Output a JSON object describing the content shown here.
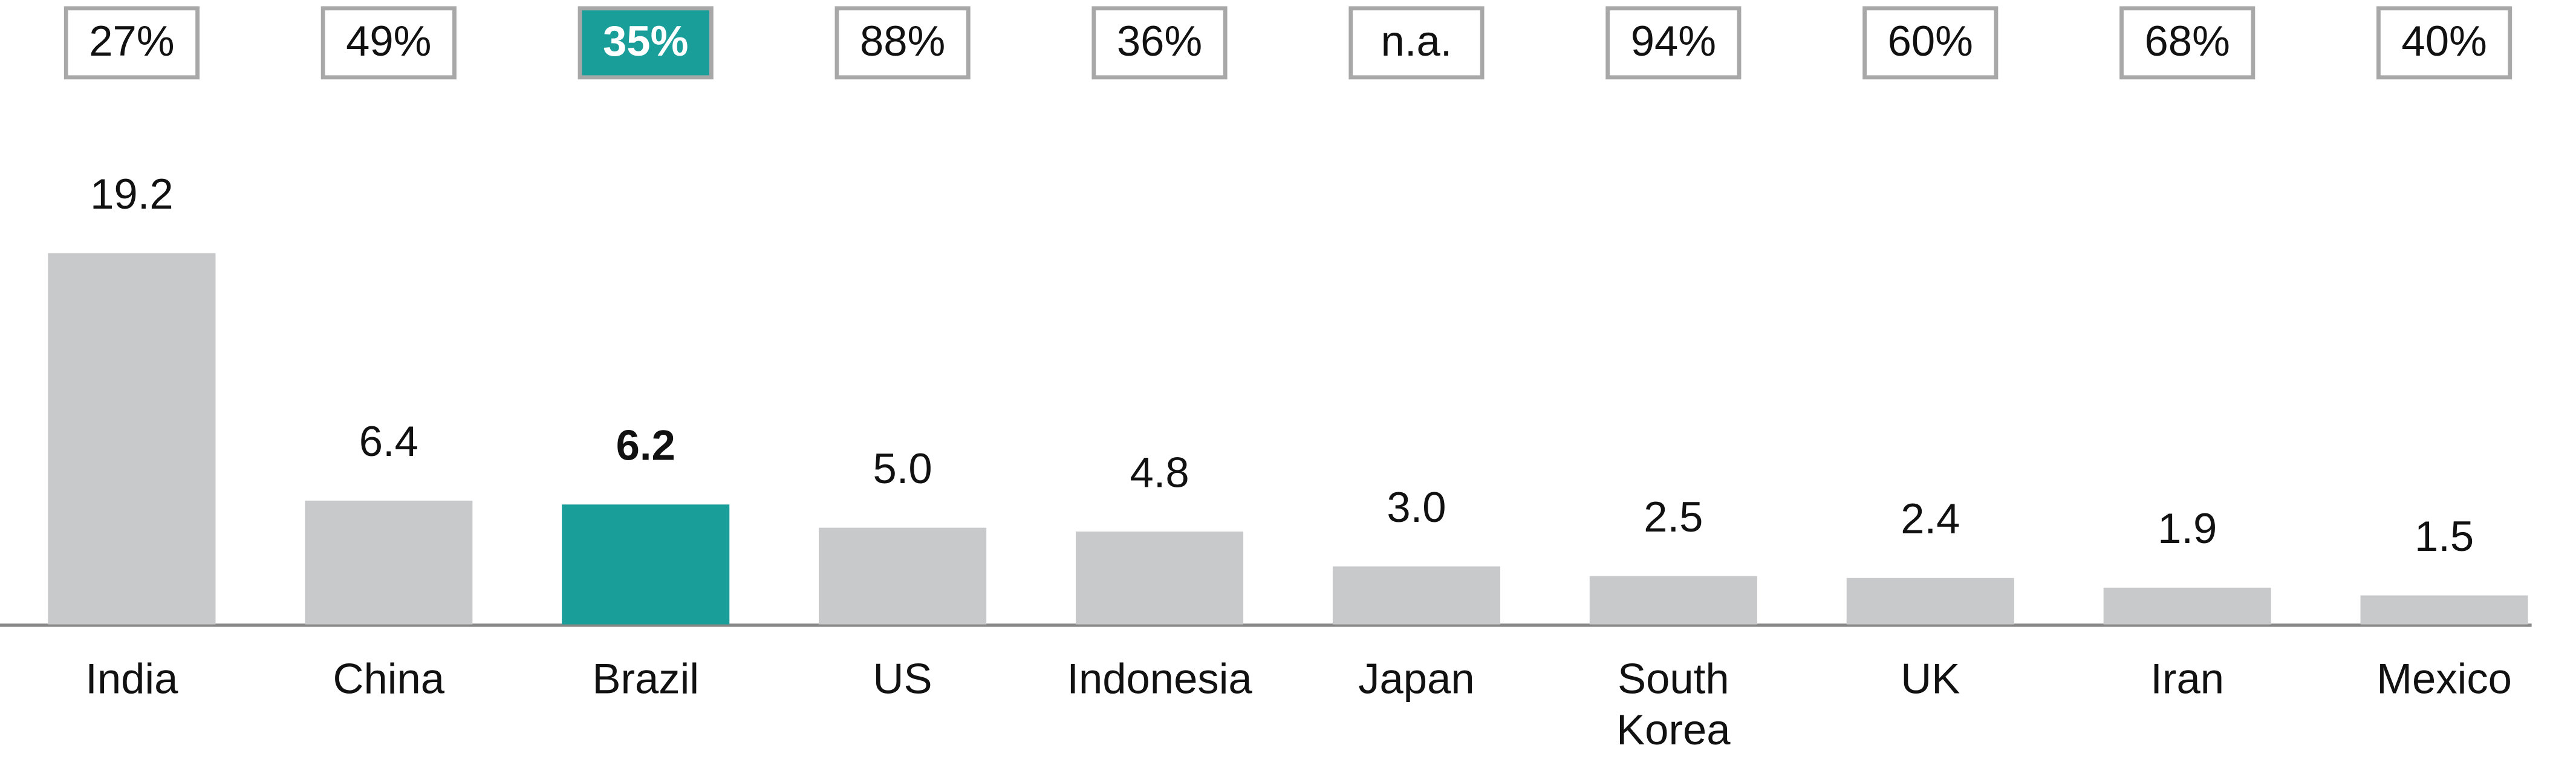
{
  "chart_data": {
    "type": "bar",
    "categories": [
      "India",
      "China",
      "Brazil",
      "US",
      "Indonesia",
      "Japan",
      "South Korea",
      "UK",
      "Iran",
      "Mexico"
    ],
    "values": [
      19.2,
      6.4,
      6.2,
      5.0,
      4.8,
      3.0,
      2.5,
      2.4,
      1.9,
      1.5
    ],
    "value_labels": [
      "19.2",
      "6.4",
      "6.2",
      "5.0",
      "4.8",
      "3.0",
      "2.5",
      "2.4",
      "1.9",
      "1.5"
    ],
    "colors": [
      "#c8c9ca",
      "#c8c9ca",
      "#1a9e9a",
      "#c8c9ca",
      "#c8c9ca",
      "#c8c9ca",
      "#c8c9ca",
      "#c8c9ca",
      "#c8c9ca",
      "#c8c9ca"
    ],
    "shares": [
      "27%",
      "49%",
      "35%",
      "88%",
      "36%",
      "n.a.",
      "94%",
      "60%",
      "68%",
      "40%"
    ]
  }
}
